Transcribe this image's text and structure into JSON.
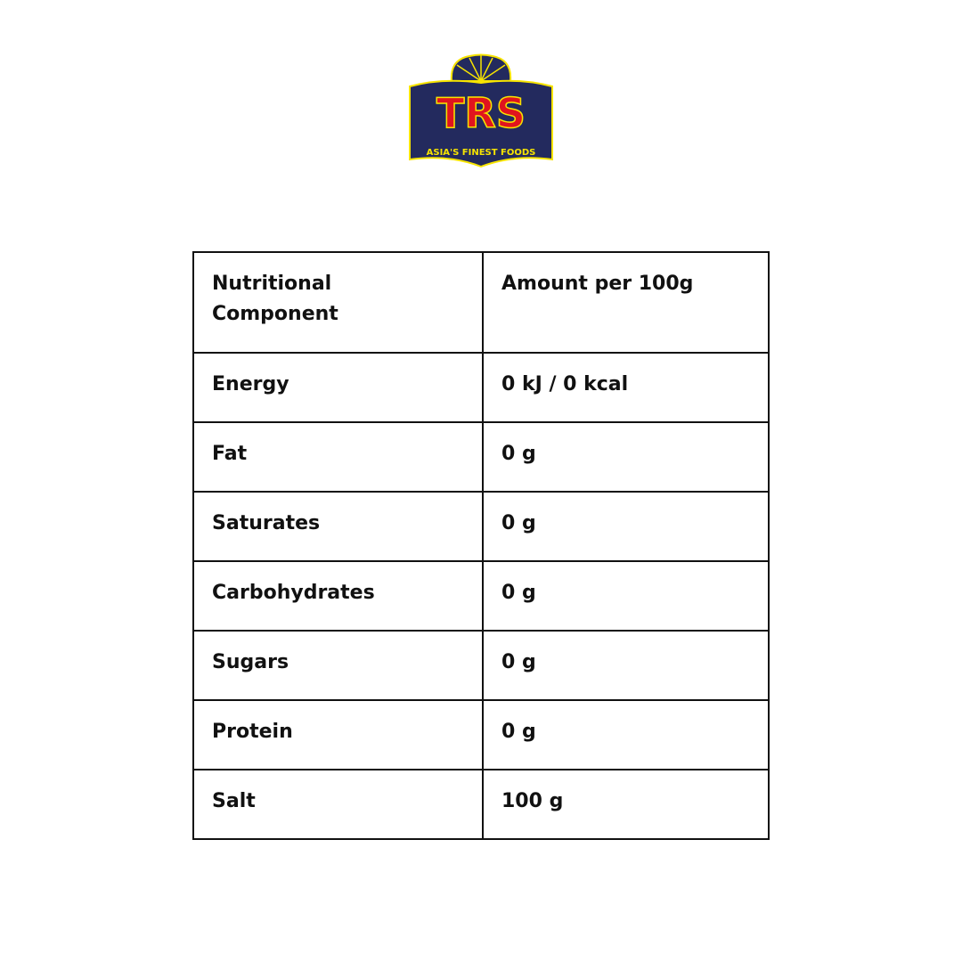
{
  "logo": {
    "brand": "TRS",
    "tagline": "ASIA'S FINEST FOODS",
    "colors": {
      "navy": "#232a5e",
      "red": "#e0141e",
      "yellow": "#f7e400"
    }
  },
  "table": {
    "headers": [
      "Nutritional Component",
      "Amount per 100g"
    ],
    "rows": [
      [
        "Energy",
        "0 kJ / 0 kcal"
      ],
      [
        "Fat",
        "0 g"
      ],
      [
        "Saturates",
        "0 g"
      ],
      [
        "Carbohydrates",
        "0 g"
      ],
      [
        "Sugars",
        "0 g"
      ],
      [
        "Protein",
        "0 g"
      ],
      [
        "Salt",
        "100 g"
      ]
    ]
  }
}
